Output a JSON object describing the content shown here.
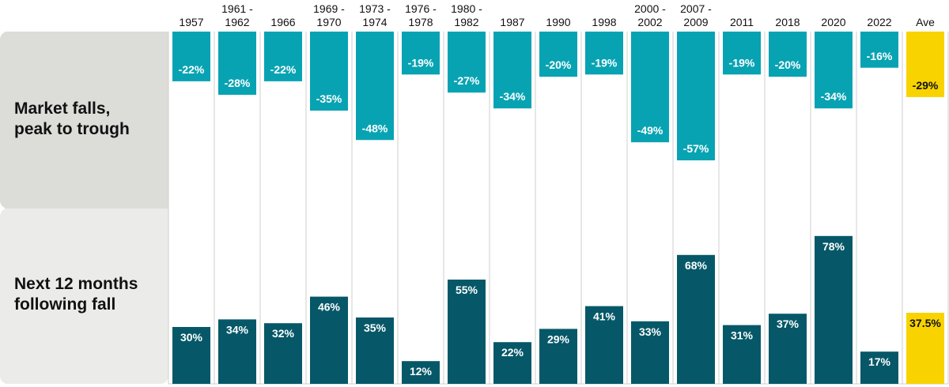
{
  "chart_data": {
    "type": "bar",
    "row_labels": {
      "top": [
        "Market falls,",
        "peak to trough"
      ],
      "bottom": [
        "Next 12 months",
        "following fall"
      ]
    },
    "categories": [
      [
        "1957"
      ],
      [
        "1961 -",
        "1962"
      ],
      [
        "1966"
      ],
      [
        "1969 -",
        "1970"
      ],
      [
        "1973 -",
        "1974"
      ],
      [
        "1976 -",
        "1978"
      ],
      [
        "1980 -",
        "1982"
      ],
      [
        "1987"
      ],
      [
        "1990"
      ],
      [
        "1998"
      ],
      [
        "2000 -",
        "2002"
      ],
      [
        "2007 -",
        "2009"
      ],
      [
        "2011"
      ],
      [
        "2018"
      ],
      [
        "2020"
      ],
      [
        "2022"
      ],
      [
        "Ave"
      ]
    ],
    "series": [
      {
        "values": [
          -22,
          -28,
          -22,
          -35,
          -48,
          -19,
          -27,
          -34,
          -20,
          -19,
          -49,
          -57,
          -19,
          -20,
          -34,
          -16,
          -29
        ],
        "labels": [
          "-22%",
          "-28%",
          "-22%",
          "-35%",
          "-48%",
          "-19%",
          "-27%",
          "-34%",
          "-20%",
          "-19%",
          "-49%",
          "-57%",
          "-19%",
          "-20%",
          "-34%",
          "-16%",
          "-29%"
        ]
      },
      {
        "values": [
          30,
          34,
          32,
          46,
          35,
          12,
          55,
          22,
          29,
          41,
          33,
          68,
          31,
          37,
          78,
          17,
          37.5
        ],
        "labels": [
          "30%",
          "34%",
          "32%",
          "46%",
          "35%",
          "12%",
          "55%",
          "22%",
          "29%",
          "41%",
          "33%",
          "68%",
          "31%",
          "37%",
          "78%",
          "17%",
          "37.5%"
        ]
      }
    ],
    "colors": {
      "falls": "#08a3b3",
      "recovery": "#065868",
      "average": "#f8d300",
      "top_band": "#dcdcd9",
      "bottom_band": "#ebebea",
      "divider": "#cfcfcf",
      "value_text": "#ffffff",
      "average_text": "#111111"
    },
    "highlight_index": 16
  }
}
